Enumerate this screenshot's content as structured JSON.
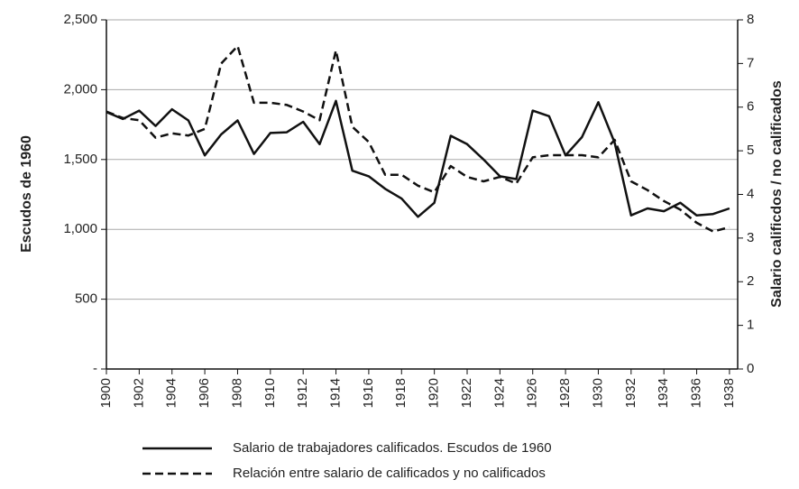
{
  "chart_data": {
    "type": "line",
    "x": [
      1900,
      1901,
      1902,
      1903,
      1904,
      1905,
      1906,
      1907,
      1908,
      1909,
      1910,
      1911,
      1912,
      1913,
      1914,
      1915,
      1916,
      1917,
      1918,
      1919,
      1920,
      1921,
      1922,
      1923,
      1924,
      1925,
      1926,
      1927,
      1928,
      1929,
      1930,
      1931,
      1932,
      1933,
      1934,
      1935,
      1936,
      1937,
      1938
    ],
    "xlim": [
      1900,
      1938.5
    ],
    "xticks": [
      1900,
      1902,
      1904,
      1906,
      1908,
      1910,
      1912,
      1914,
      1916,
      1918,
      1920,
      1922,
      1924,
      1926,
      1928,
      1930,
      1932,
      1934,
      1936,
      1938
    ],
    "ylabel": "Escudos de 1960",
    "y2label": "Salario calificdos / no calificados",
    "ylim": [
      0,
      2500
    ],
    "yticks": [
      {
        "value": 0,
        "label": "-"
      },
      500,
      {
        "value": 1000,
        "label": "1,000"
      },
      {
        "value": 1500,
        "label": "1,500"
      },
      {
        "value": 2000,
        "label": "2,000"
      },
      {
        "value": 2500,
        "label": "2,500"
      }
    ],
    "y2lim": [
      0,
      8
    ],
    "y2ticks": [
      0,
      1,
      2,
      3,
      4,
      5,
      6,
      7,
      8
    ],
    "grid": true,
    "legend": "bottom",
    "series": [
      {
        "name": "Salario de trabajadores calificados. Escudos de 1960",
        "color": "#111111",
        "dash": "solid",
        "values": [
          1840,
          1790,
          1850,
          1740,
          1860,
          1780,
          1530,
          1680,
          1780,
          1540,
          1690,
          1695,
          1770,
          1610,
          1920,
          1420,
          1380,
          1290,
          1220,
          1090,
          1190,
          1670,
          1610,
          1500,
          1380,
          1360,
          1850,
          1810,
          1530,
          1660,
          1910,
          1620,
          1100,
          1150,
          1130,
          1190,
          1100,
          1110,
          1150
        ]
      },
      {
        "name": "Relación entre salario de calificados y no calificados",
        "color": "#111111",
        "dash": "dashed",
        "axis": "y2",
        "values": [
          5.9,
          5.75,
          5.7,
          5.3,
          5.4,
          5.35,
          5.5,
          7.0,
          7.4,
          6.1,
          6.1,
          6.05,
          5.9,
          5.7,
          7.3,
          5.55,
          5.2,
          4.45,
          4.45,
          4.2,
          4.05,
          4.65,
          4.4,
          4.3,
          4.4,
          4.25,
          4.85,
          4.9,
          4.9,
          4.9,
          4.85,
          5.25,
          4.3,
          4.1,
          3.85,
          3.65,
          3.35,
          3.15,
          3.25
        ]
      }
    ]
  }
}
